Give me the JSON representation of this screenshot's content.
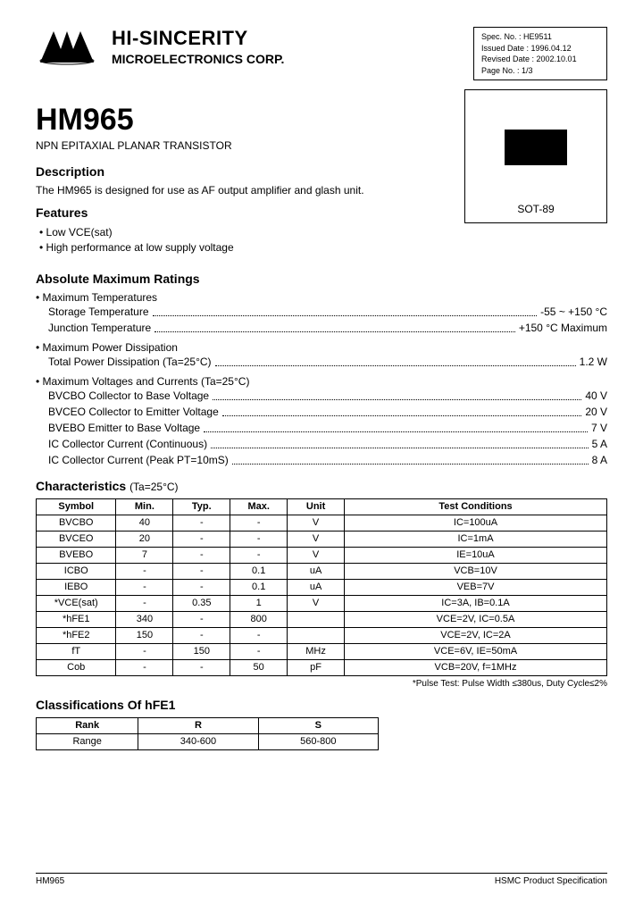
{
  "header": {
    "company_name": "HI-SINCERITY",
    "company_sub": "MICROELECTRONICS CORP.",
    "meta": {
      "spec_no": "Spec. No. : HE9511",
      "issued": "Issued Date : 1996.04.12",
      "revised": "Revised Date : 2002.10.01",
      "page": "Page No. : 1/3"
    }
  },
  "part": {
    "number": "HM965",
    "subtitle": "NPN EPITAXIAL PLANAR TRANSISTOR"
  },
  "package": {
    "label": "SOT-89"
  },
  "description": {
    "heading": "Description",
    "text": "The HM965 is designed for use as AF output amplifier and glash unit."
  },
  "features": {
    "heading": "Features",
    "items": [
      "Low VCE(sat)",
      "High performance at low supply voltage"
    ]
  },
  "absmax": {
    "heading": "Absolute Maximum Ratings",
    "groups": [
      {
        "title": "Maximum Temperatures",
        "lines": [
          {
            "label": "Storage Temperature",
            "value": "-55 ~ +150 °C"
          },
          {
            "label": "Junction Temperature",
            "value": "+150 °C Maximum"
          }
        ]
      },
      {
        "title": "Maximum Power Dissipation",
        "lines": [
          {
            "label": "Total Power Dissipation (Ta=25°C)",
            "value": "1.2 W"
          }
        ]
      },
      {
        "title": "Maximum Voltages and Currents (Ta=25°C)",
        "lines": [
          {
            "label": "BVCBO Collector to Base Voltage",
            "value": "40 V"
          },
          {
            "label": "BVCEO Collector to Emitter Voltage",
            "value": "20 V"
          },
          {
            "label": "BVEBO Emitter to Base Voltage",
            "value": "7 V"
          },
          {
            "label": "IC Collector Current (Continuous)",
            "value": "5 A"
          },
          {
            "label": "IC Collector Current (Peak PT=10mS)",
            "value": "8 A"
          }
        ]
      }
    ]
  },
  "characteristics": {
    "heading": "Characteristics",
    "cond": "(Ta=25°C)",
    "columns": [
      "Symbol",
      "Min.",
      "Typ.",
      "Max.",
      "Unit",
      "Test Conditions"
    ],
    "rows": [
      [
        "BVCBO",
        "40",
        "-",
        "-",
        "V",
        "IC=100uA"
      ],
      [
        "BVCEO",
        "20",
        "-",
        "-",
        "V",
        "IC=1mA"
      ],
      [
        "BVEBO",
        "7",
        "-",
        "-",
        "V",
        "IE=10uA"
      ],
      [
        "ICBO",
        "-",
        "-",
        "0.1",
        "uA",
        "VCB=10V"
      ],
      [
        "IEBO",
        "-",
        "-",
        "0.1",
        "uA",
        "VEB=7V"
      ],
      [
        "*VCE(sat)",
        "-",
        "0.35",
        "1",
        "V",
        "IC=3A, IB=0.1A"
      ],
      [
        "*hFE1",
        "340",
        "-",
        "800",
        "",
        "VCE=2V, IC=0.5A"
      ],
      [
        "*hFE2",
        "150",
        "-",
        "-",
        "",
        "VCE=2V, IC=2A"
      ],
      [
        "fT",
        "-",
        "150",
        "-",
        "MHz",
        "VCE=6V, IE=50mA"
      ],
      [
        "Cob",
        "-",
        "-",
        "50",
        "pF",
        "VCB=20V, f=1MHz"
      ]
    ],
    "note": "*Pulse Test: Pulse Width ≤380us, Duty Cycle≤2%"
  },
  "hfe_class": {
    "heading": "Classifications Of hFE1",
    "columns": [
      "Rank",
      "R",
      "S"
    ],
    "rows": [
      [
        "Range",
        "340-600",
        "560-800"
      ]
    ]
  },
  "footer": {
    "left": "HM965",
    "right": "HSMC Product Specification"
  },
  "style": {
    "colors": {
      "text": "#000000",
      "bg": "#ffffff",
      "border": "#000000"
    },
    "fonts": {
      "body_size": 12,
      "title_size": 34,
      "section_size": 14
    },
    "table": {
      "col_widths_pct": [
        14,
        10,
        10,
        10,
        10,
        46
      ]
    }
  }
}
